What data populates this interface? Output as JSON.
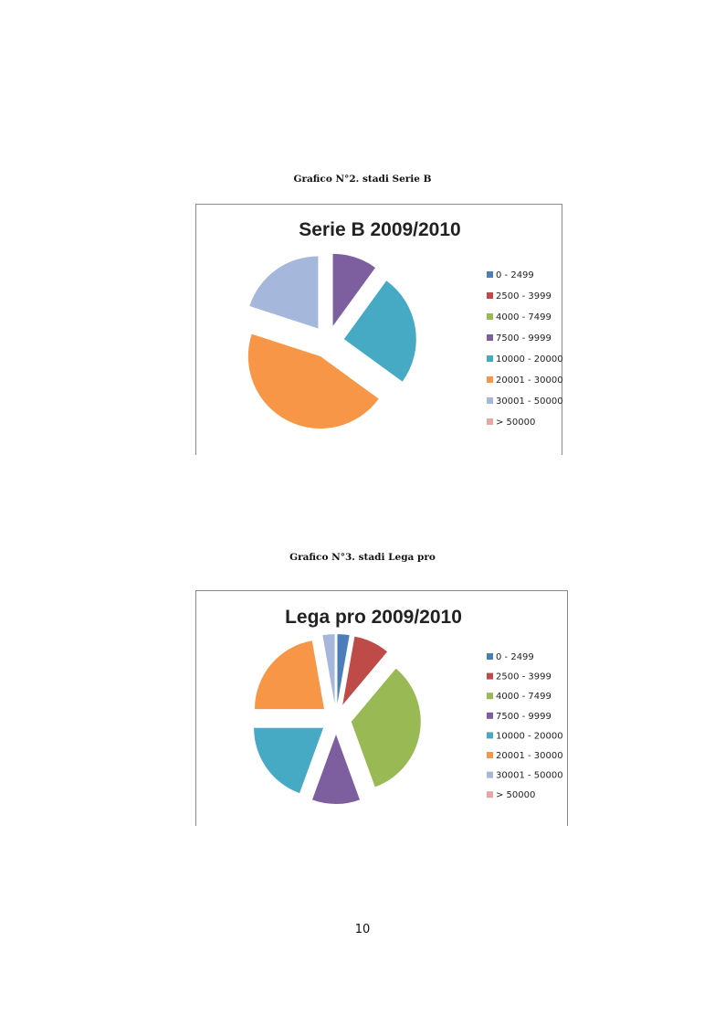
{
  "captions": [
    "Grafico N°2. stadi Serie B",
    "Grafico N°3. stadi Lega pro"
  ],
  "page_number": "10",
  "chart_data": [
    {
      "type": "pie",
      "title": "Serie B 2009/2010",
      "categories": [
        "0 - 2499",
        "2500 - 3999",
        "4000 - 7499",
        "7500 - 9999",
        "10000 - 20000",
        "20001 - 30000",
        "30001 - 50000",
        "> 50000"
      ],
      "values": [
        0,
        0,
        0,
        2,
        5,
        9,
        4,
        0
      ],
      "colors": [
        "#4a7ebb",
        "#be4b48",
        "#98b954",
        "#7d5fa0",
        "#46aac5",
        "#f79646",
        "#a5b7db",
        "#e6a6a5"
      ],
      "legend": "right",
      "exploded": true
    },
    {
      "type": "pie",
      "title": "Lega pro 2009/2010",
      "categories": [
        "0 - 2499",
        "2500 - 3999",
        "4000 - 7499",
        "7500 - 9999",
        "10000 - 20000",
        "20001 - 30000",
        "30001 - 50000",
        "> 50000"
      ],
      "values": [
        1,
        3,
        12,
        4,
        7,
        8,
        1,
        0
      ],
      "colors": [
        "#4a7ebb",
        "#be4b48",
        "#98b954",
        "#7d5fa0",
        "#46aac5",
        "#f79646",
        "#a5b7db",
        "#e6a6a5"
      ],
      "legend": "right",
      "exploded": true
    }
  ]
}
